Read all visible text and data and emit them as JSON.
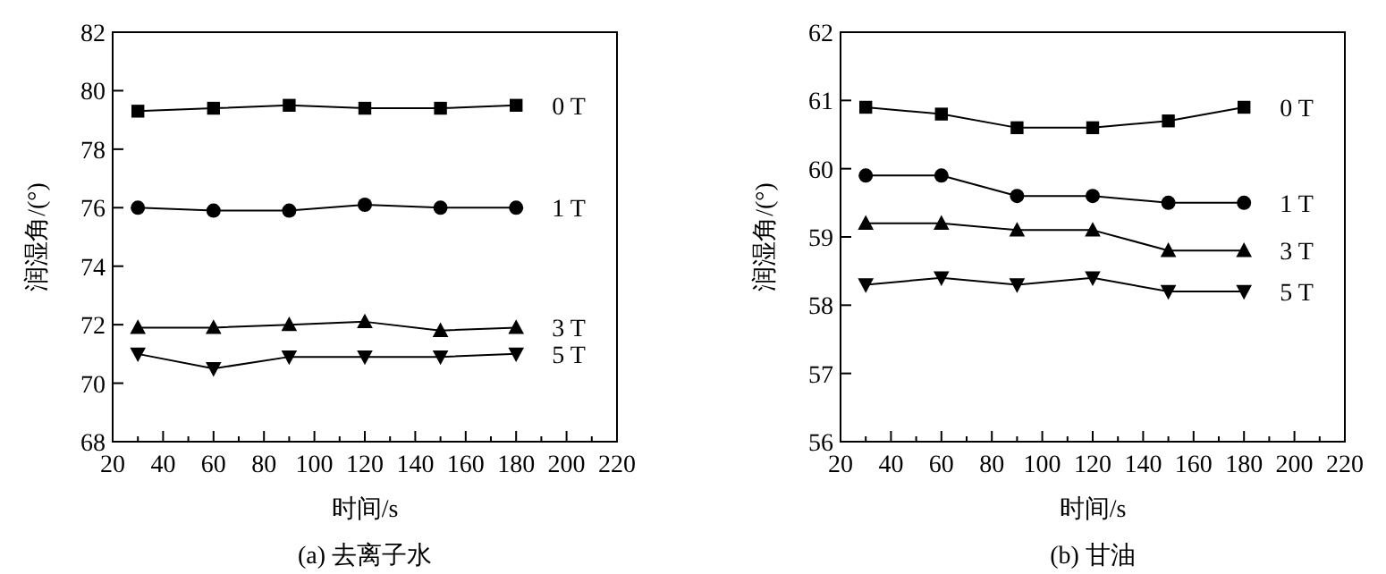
{
  "chart_data": [
    {
      "type": "line",
      "title": "(a) 去离子水",
      "xlabel": "时间/s",
      "ylabel": "润湿角/(°)",
      "x": [
        30,
        60,
        90,
        120,
        150,
        180
      ],
      "xlim": [
        20,
        220
      ],
      "xticks": [
        20,
        {
          "value": 30,
          "label": null
        },
        40,
        {
          "value": 50,
          "label": null
        },
        60,
        {
          "value": 70,
          "label": null
        },
        80,
        {
          "value": 90,
          "label": null
        },
        100,
        {
          "value": 110,
          "label": null
        },
        120,
        {
          "value": 130,
          "label": null
        },
        140,
        {
          "value": 150,
          "label": null
        },
        160,
        {
          "value": 170,
          "label": null
        },
        180,
        {
          "value": 190,
          "label": null
        },
        200,
        {
          "value": 210,
          "label": null
        },
        220
      ],
      "ylim": [
        68,
        82
      ],
      "yticks": [
        68,
        70,
        72,
        74,
        76,
        78,
        80,
        82
      ],
      "grid": false,
      "legend": false,
      "line_style": "solid",
      "series": [
        {
          "name": "0 T",
          "color": "#000000",
          "marker": "square",
          "values": [
            79.3,
            79.4,
            79.5,
            79.4,
            79.4,
            79.5
          ]
        },
        {
          "name": "1 T",
          "color": "#000000",
          "marker": "circle",
          "values": [
            76.0,
            75.9,
            75.9,
            76.1,
            76.0,
            76.0
          ]
        },
        {
          "name": "3 T",
          "color": "#000000",
          "marker": "triangle",
          "values": [
            71.9,
            71.9,
            72.0,
            72.1,
            71.8,
            71.9
          ]
        },
        {
          "name": "5 T",
          "color": "#000000",
          "marker": "triangle-down",
          "values": [
            71.0,
            70.5,
            70.9,
            70.9,
            70.9,
            71.0
          ]
        }
      ]
    },
    {
      "type": "line",
      "title": "(b) 甘油",
      "xlabel": "时间/s",
      "ylabel": "润湿角/(°)",
      "x": [
        30,
        60,
        90,
        120,
        150,
        180
      ],
      "xlim": [
        20,
        220
      ],
      "xticks": [
        20,
        {
          "value": 30,
          "label": null
        },
        40,
        {
          "value": 50,
          "label": null
        },
        60,
        {
          "value": 70,
          "label": null
        },
        80,
        {
          "value": 90,
          "label": null
        },
        100,
        {
          "value": 110,
          "label": null
        },
        120,
        {
          "value": 130,
          "label": null
        },
        140,
        {
          "value": 150,
          "label": null
        },
        160,
        {
          "value": 170,
          "label": null
        },
        180,
        {
          "value": 190,
          "label": null
        },
        200,
        {
          "value": 210,
          "label": null
        },
        220
      ],
      "ylim": [
        56,
        62
      ],
      "yticks": [
        56,
        57,
        58,
        59,
        60,
        61,
        62
      ],
      "grid": false,
      "legend": false,
      "line_style": "solid",
      "series": [
        {
          "name": "0 T",
          "color": "#000000",
          "marker": "square",
          "values": [
            60.9,
            60.8,
            60.6,
            60.6,
            60.7,
            60.9
          ]
        },
        {
          "name": "1 T",
          "color": "#000000",
          "marker": "circle",
          "values": [
            59.9,
            59.9,
            59.6,
            59.6,
            59.5,
            59.5
          ]
        },
        {
          "name": "3 T",
          "color": "#000000",
          "marker": "triangle",
          "values": [
            59.2,
            59.2,
            59.1,
            59.1,
            58.8,
            58.8
          ]
        },
        {
          "name": "5 T",
          "color": "#000000",
          "marker": "triangle-down",
          "values": [
            58.3,
            58.4,
            58.3,
            58.4,
            58.2,
            58.2
          ]
        }
      ]
    }
  ]
}
